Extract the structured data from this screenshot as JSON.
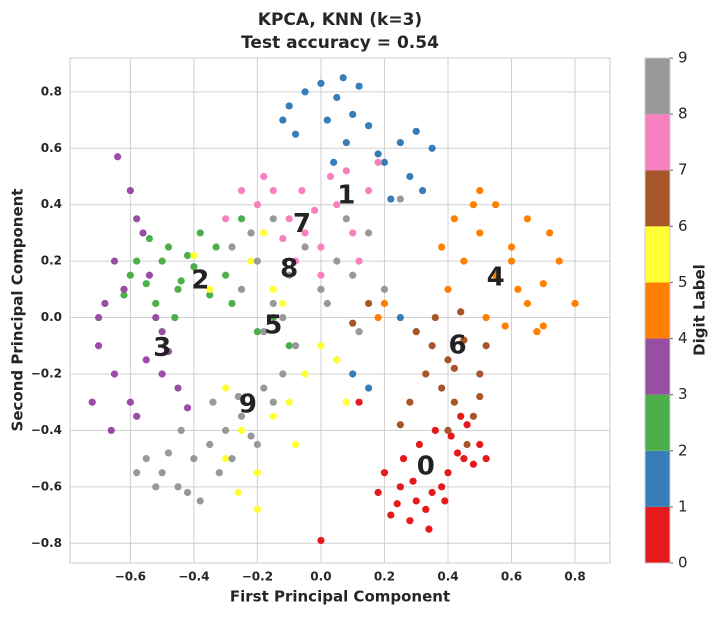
{
  "chart_data": {
    "type": "scatter",
    "title": "KPCA, KNN (k=3)",
    "subtitle": "Test accuracy = 0.54",
    "x_label": "First Principal Component",
    "y_label": "Second Principal Component",
    "xlim": [
      -0.79,
      0.91
    ],
    "ylim": [
      -0.87,
      0.92
    ],
    "xticks": [
      {
        "value": -0.6,
        "label": "−0.6"
      },
      {
        "value": -0.4,
        "label": "−0.4"
      },
      {
        "value": -0.2,
        "label": "−0.2"
      },
      {
        "value": 0,
        "label": "0.0"
      },
      0.2,
      0.4,
      0.6,
      0.8
    ],
    "yticks": [
      {
        "value": -0.8,
        "label": "−0.8"
      },
      {
        "value": -0.6,
        "label": "−0.6"
      },
      {
        "value": -0.4,
        "label": "−0.4"
      },
      {
        "value": -0.2,
        "label": "−0.2"
      },
      {
        "value": 0,
        "label": "0.0"
      },
      0.2,
      0.4,
      0.6,
      0.8
    ],
    "grid": true,
    "series": [
      {
        "color": "#e41a1c",
        "x": [
          0.2,
          0.25,
          0.3,
          0.35,
          0.4,
          0.45,
          0.5,
          0.22,
          0.28,
          0.33,
          0.38,
          0.43,
          0.48,
          0.18,
          0.26,
          0.31,
          0.36,
          0.41,
          0.46,
          0.52,
          0.24,
          0.29,
          0.34,
          0.39,
          0.44,
          0.0,
          0.12
        ],
        "y": [
          -0.55,
          -0.6,
          -0.65,
          -0.62,
          -0.55,
          -0.5,
          -0.45,
          -0.7,
          -0.72,
          -0.68,
          -0.6,
          -0.48,
          -0.52,
          -0.62,
          -0.5,
          -0.45,
          -0.4,
          -0.42,
          -0.38,
          -0.5,
          -0.66,
          -0.58,
          -0.75,
          -0.65,
          -0.35,
          -0.79,
          -0.3
        ]
      },
      {
        "color": "#377eb8",
        "x": [
          -0.1,
          -0.05,
          0.0,
          0.05,
          0.1,
          0.15,
          -0.08,
          0.02,
          0.08,
          0.12,
          0.2,
          0.25,
          0.3,
          0.35,
          0.28,
          0.32,
          -0.12,
          0.04,
          0.07,
          0.18,
          0.22,
          0.1,
          0.15,
          0.05,
          0.25
        ],
        "y": [
          0.75,
          0.8,
          0.83,
          0.78,
          0.72,
          0.68,
          0.65,
          0.7,
          0.62,
          0.82,
          0.55,
          0.62,
          0.66,
          0.6,
          0.5,
          0.45,
          0.7,
          0.55,
          0.85,
          0.58,
          0.42,
          -0.2,
          -0.25,
          -0.15,
          0.0
        ]
      },
      {
        "color": "#4daf4a",
        "x": [
          -0.6,
          -0.55,
          -0.5,
          -0.45,
          -0.4,
          -0.35,
          -0.3,
          -0.52,
          -0.48,
          -0.42,
          -0.38,
          -0.58,
          -0.62,
          -0.46,
          -0.33,
          -0.28,
          -0.44,
          -0.54,
          -0.2,
          -0.15,
          -0.1,
          -0.25
        ],
        "y": [
          0.15,
          0.12,
          0.2,
          0.1,
          0.18,
          0.08,
          0.15,
          0.05,
          0.25,
          0.22,
          0.3,
          0.2,
          0.08,
          0.0,
          0.25,
          0.05,
          0.13,
          0.28,
          -0.05,
          0.0,
          -0.1,
          0.35
        ]
      },
      {
        "color": "#984ea3",
        "x": [
          -0.7,
          -0.65,
          -0.6,
          -0.55,
          -0.5,
          -0.45,
          -0.68,
          -0.62,
          -0.58,
          -0.52,
          -0.48,
          -0.72,
          -0.66,
          -0.56,
          -0.6,
          -0.64,
          -0.5,
          -0.42,
          -0.58,
          -0.65,
          -0.54,
          -0.7
        ],
        "y": [
          -0.1,
          -0.2,
          -0.3,
          -0.15,
          -0.05,
          -0.25,
          0.05,
          0.1,
          -0.35,
          0.0,
          -0.12,
          -0.3,
          -0.4,
          0.3,
          0.45,
          0.57,
          -0.2,
          -0.32,
          0.35,
          0.2,
          0.15,
          0.0
        ]
      },
      {
        "color": "#ff7f00",
        "x": [
          0.4,
          0.45,
          0.5,
          0.55,
          0.6,
          0.65,
          0.7,
          0.75,
          0.8,
          0.42,
          0.48,
          0.52,
          0.58,
          0.62,
          0.68,
          0.72,
          0.38,
          0.5,
          0.55,
          0.65,
          0.44,
          0.6,
          0.7,
          0.2,
          0.18
        ],
        "y": [
          0.1,
          0.2,
          0.3,
          0.15,
          0.25,
          0.05,
          0.12,
          0.2,
          0.05,
          0.35,
          0.4,
          0.0,
          -0.03,
          0.1,
          -0.05,
          0.3,
          0.25,
          0.45,
          0.4,
          0.35,
          0.02,
          0.2,
          -0.03,
          0.05,
          0.0
        ]
      },
      {
        "color": "#ffff33",
        "x": [
          -0.35,
          -0.3,
          -0.25,
          -0.2,
          -0.15,
          -0.1,
          -0.05,
          0.0,
          0.05,
          -0.28,
          -0.22,
          -0.18,
          -0.12,
          -0.32,
          -0.26,
          -0.08,
          -0.4,
          -0.2,
          -0.15,
          -0.35,
          -0.3,
          0.08
        ],
        "y": [
          -0.45,
          -0.5,
          -0.4,
          -0.55,
          -0.35,
          -0.3,
          -0.2,
          -0.1,
          -0.15,
          0.25,
          0.2,
          0.3,
          0.05,
          -0.55,
          -0.62,
          -0.45,
          0.22,
          -0.68,
          0.1,
          0.1,
          -0.25,
          -0.3
        ]
      },
      {
        "color": "#a65628",
        "x": [
          0.3,
          0.35,
          0.4,
          0.45,
          0.5,
          0.38,
          0.42,
          0.48,
          0.33,
          0.28,
          0.36,
          0.44,
          0.52,
          0.4,
          0.46,
          0.25,
          0.1,
          0.15,
          0.42,
          0.5
        ],
        "y": [
          -0.05,
          -0.1,
          -0.15,
          -0.08,
          -0.2,
          -0.25,
          -0.3,
          -0.35,
          -0.2,
          -0.3,
          0.0,
          0.02,
          -0.1,
          -0.4,
          -0.45,
          -0.38,
          -0.02,
          0.05,
          -0.18,
          -0.28
        ]
      },
      {
        "color": "#f781bf",
        "x": [
          -0.2,
          -0.15,
          -0.1,
          -0.05,
          0.0,
          0.05,
          0.1,
          0.15,
          -0.18,
          -0.12,
          -0.08,
          -0.02,
          0.03,
          -0.25,
          -0.3,
          0.12,
          0.18,
          -0.06,
          0.0,
          -0.22,
          0.08
        ],
        "y": [
          0.4,
          0.45,
          0.35,
          0.3,
          0.25,
          0.4,
          0.3,
          0.45,
          0.5,
          0.28,
          0.2,
          0.38,
          0.5,
          0.45,
          0.35,
          0.2,
          0.55,
          0.45,
          0.15,
          0.3,
          0.52
        ]
      },
      {
        "color": "#999999",
        "x": [
          -0.25,
          -0.2,
          -0.15,
          -0.1,
          -0.05,
          0.0,
          0.05,
          0.1,
          0.15,
          -0.18,
          -0.12,
          -0.08,
          0.02,
          0.08,
          -0.22,
          -0.28,
          0.12,
          0.2,
          -0.15,
          0.25
        ],
        "y": [
          0.1,
          0.2,
          0.05,
          0.15,
          0.25,
          0.1,
          0.2,
          0.15,
          0.3,
          -0.05,
          0.0,
          -0.1,
          0.05,
          0.35,
          0.3,
          0.25,
          -0.05,
          0.1,
          0.35,
          0.42
        ]
      },
      {
        "color": "#999999",
        "x": [
          -0.55,
          -0.5,
          -0.45,
          -0.4,
          -0.35,
          -0.3,
          -0.25,
          -0.2,
          -0.15,
          -0.52,
          -0.48,
          -0.42,
          -0.38,
          -0.32,
          -0.28,
          -0.22,
          -0.18,
          -0.58,
          -0.44,
          -0.34,
          -0.12,
          -0.26
        ],
        "y": [
          -0.5,
          -0.55,
          -0.6,
          -0.5,
          -0.45,
          -0.4,
          -0.35,
          -0.45,
          -0.3,
          -0.6,
          -0.48,
          -0.62,
          -0.65,
          -0.55,
          -0.5,
          -0.42,
          -0.25,
          -0.55,
          -0.4,
          -0.3,
          -0.2,
          -0.28
        ]
      }
    ],
    "annotations": [
      {
        "text": "0",
        "x": 0.33,
        "y": -0.53
      },
      {
        "text": "1",
        "x": 0.08,
        "y": 0.43
      },
      {
        "text": "2",
        "x": -0.38,
        "y": 0.13
      },
      {
        "text": "3",
        "x": -0.5,
        "y": -0.11
      },
      {
        "text": "4",
        "x": 0.55,
        "y": 0.14
      },
      {
        "text": "5",
        "x": -0.15,
        "y": -0.03
      },
      {
        "text": "6",
        "x": 0.43,
        "y": -0.1
      },
      {
        "text": "7",
        "x": -0.06,
        "y": 0.33
      },
      {
        "text": "8",
        "x": -0.1,
        "y": 0.17
      },
      {
        "text": "9",
        "x": -0.23,
        "y": -0.31
      }
    ],
    "colorbar": {
      "label": "Digit Label",
      "ticks": [
        0,
        1,
        2,
        3,
        4,
        5,
        6,
        7,
        8,
        9
      ],
      "colors": [
        "#e41a1c",
        "#377eb8",
        "#4daf4a",
        "#984ea3",
        "#ff7f00",
        "#ffff33",
        "#a65628",
        "#f781bf",
        "#999999"
      ]
    }
  }
}
